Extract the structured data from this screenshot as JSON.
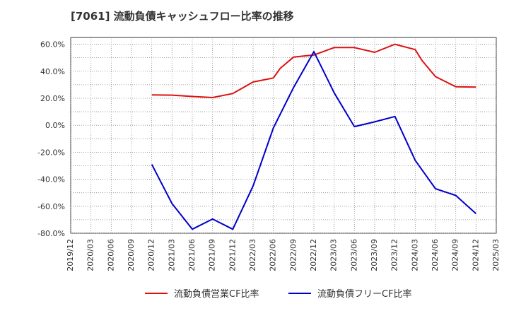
{
  "chart_data": {
    "type": "line",
    "title": "[7061]  流動負債キャッシュフロー比率の推移",
    "xlabel": "",
    "ylabel": "",
    "y_ticks": [
      "60.0%",
      "40.0%",
      "20.0%",
      "0.0%",
      "-20.0%",
      "-40.0%",
      "-60.0%",
      "-80.0%"
    ],
    "ylim": [
      -80,
      65
    ],
    "x_ticks": [
      "2019/12",
      "2020/03",
      "2020/06",
      "2020/09",
      "2020/12",
      "2021/03",
      "2021/06",
      "2021/09",
      "2021/12",
      "2022/03",
      "2022/06",
      "2022/09",
      "2022/12",
      "2023/03",
      "2023/06",
      "2023/09",
      "2023/12",
      "2024/03",
      "2024/06",
      "2024/09",
      "2024/12",
      "2025/03"
    ],
    "grid": true,
    "legend_position": "bottom",
    "series": [
      {
        "name": "流動負債営業CF比率",
        "color": "#dd1111",
        "points": [
          [
            "2020/12",
            22.5
          ],
          [
            "2021/03",
            22.3
          ],
          [
            "2021/06",
            21.3
          ],
          [
            "2021/09",
            20.5
          ],
          [
            "2021/12",
            23.5
          ],
          [
            "2022/03",
            32.0
          ],
          [
            "2022/06",
            35.0
          ],
          [
            "2022/07",
            42.0
          ],
          [
            "2022/09",
            50.5
          ],
          [
            "2022/12",
            52.0
          ],
          [
            "2023/03",
            57.5
          ],
          [
            "2023/06",
            57.5
          ],
          [
            "2023/09",
            54.0
          ],
          [
            "2023/12",
            60.0
          ],
          [
            "2024/03",
            56.0
          ],
          [
            "2024/04",
            48.0
          ],
          [
            "2024/06",
            36.0
          ],
          [
            "2024/09",
            28.5
          ],
          [
            "2024/12",
            28.2
          ]
        ]
      },
      {
        "name": "流動負債フリーCF比率",
        "color": "#0000cc",
        "points": [
          [
            "2020/12",
            -29.0
          ],
          [
            "2021/03",
            -58.0
          ],
          [
            "2021/06",
            -77.0
          ],
          [
            "2021/09",
            -69.5
          ],
          [
            "2021/12",
            -77.0
          ],
          [
            "2022/03",
            -45.0
          ],
          [
            "2022/06",
            -2.0
          ],
          [
            "2022/09",
            28.0
          ],
          [
            "2022/12",
            54.5
          ],
          [
            "2023/03",
            24.0
          ],
          [
            "2023/06",
            -1.0
          ],
          [
            "2023/09",
            2.5
          ],
          [
            "2023/12",
            6.5
          ],
          [
            "2024/03",
            -26.0
          ],
          [
            "2024/06",
            -47.0
          ],
          [
            "2024/09",
            -52.0
          ],
          [
            "2024/12",
            -65.5
          ]
        ]
      }
    ]
  }
}
